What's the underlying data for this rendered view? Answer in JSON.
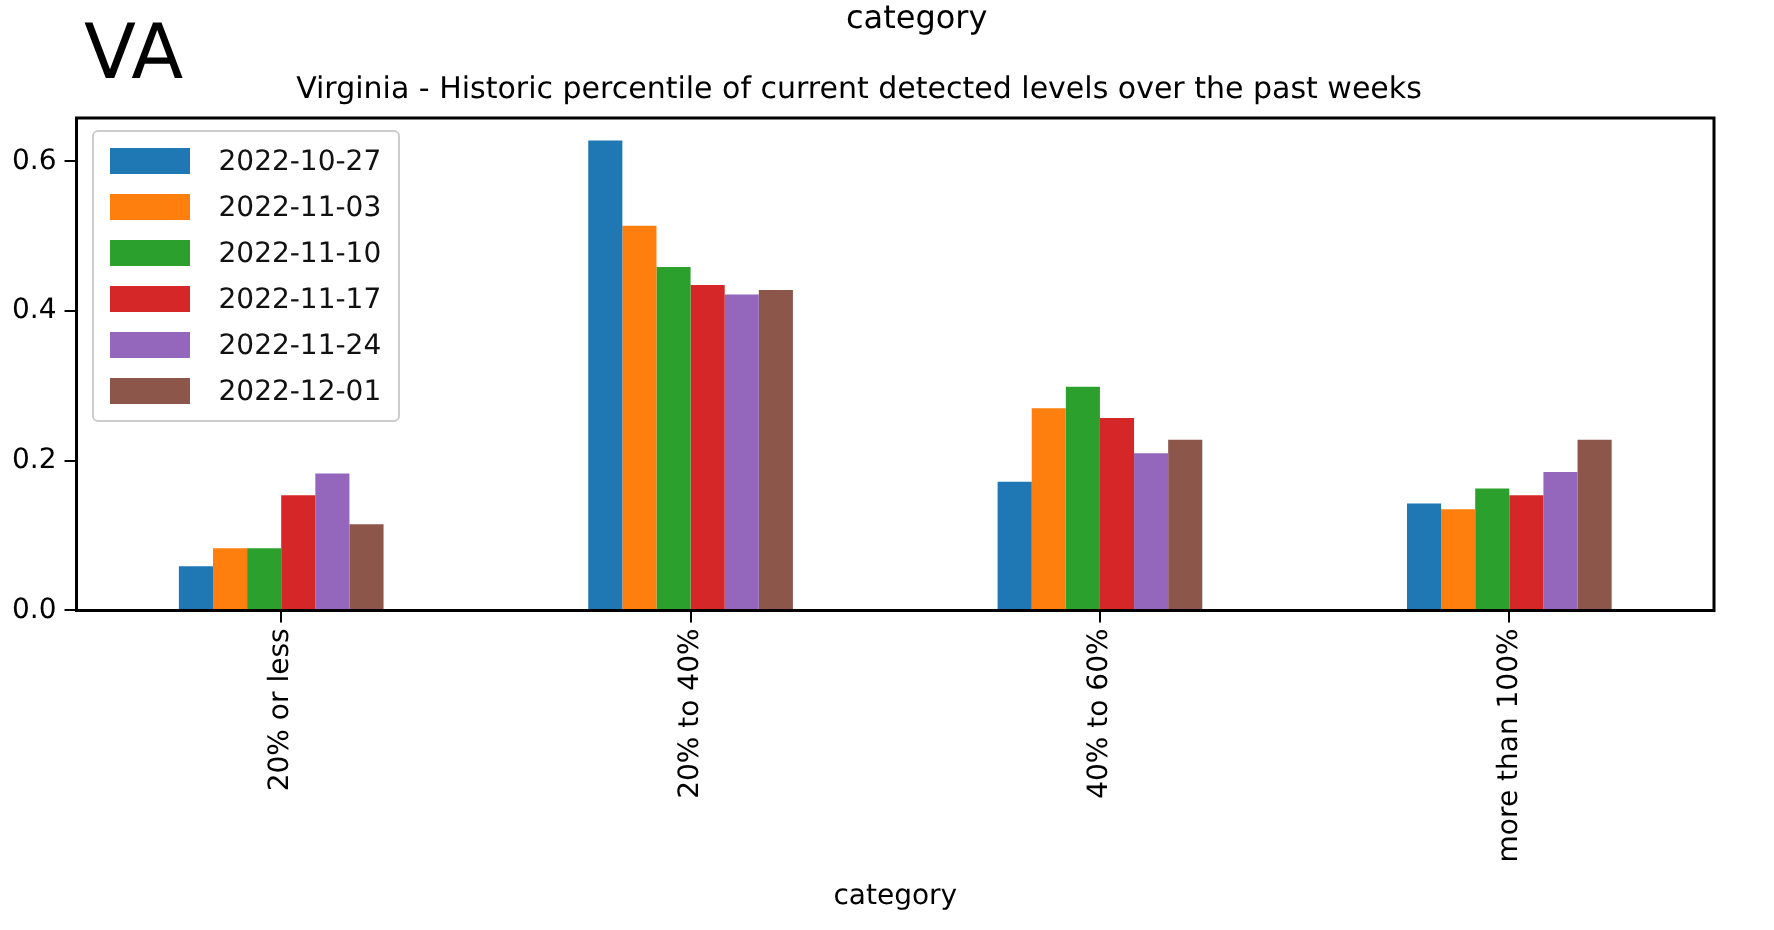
{
  "chart_data": {
    "type": "bar",
    "title": "Virginia - Historic percentile of current detected levels over the past weeks",
    "xlabel": "category",
    "annotations": [
      "VA",
      "category"
    ],
    "categories": [
      "20% or less",
      "20% to 40%",
      "40% to 60%",
      "more than 100%"
    ],
    "series": [
      {
        "name": "2022-10-27",
        "color": "#1f77b4",
        "values": [
          0.059,
          0.628,
          0.172,
          0.143
        ]
      },
      {
        "name": "2022-11-03",
        "color": "#ff7f0e",
        "values": [
          0.083,
          0.514,
          0.27,
          0.135
        ]
      },
      {
        "name": "2022-11-10",
        "color": "#2ca02c",
        "values": [
          0.083,
          0.459,
          0.299,
          0.163
        ]
      },
      {
        "name": "2022-11-17",
        "color": "#d62728",
        "values": [
          0.154,
          0.435,
          0.257,
          0.154
        ]
      },
      {
        "name": "2022-11-24",
        "color": "#9467bd",
        "values": [
          0.183,
          0.422,
          0.21,
          0.185
        ]
      },
      {
        "name": "2022-12-01",
        "color": "#8c564b",
        "values": [
          0.115,
          0.428,
          0.228,
          0.228
        ]
      }
    ],
    "ylim": [
      0,
      0.658
    ],
    "yticks": [
      {
        "value": 0,
        "label": "0.0"
      },
      0.2,
      0.4,
      0.6
    ],
    "grid": false,
    "legend": "top left"
  }
}
